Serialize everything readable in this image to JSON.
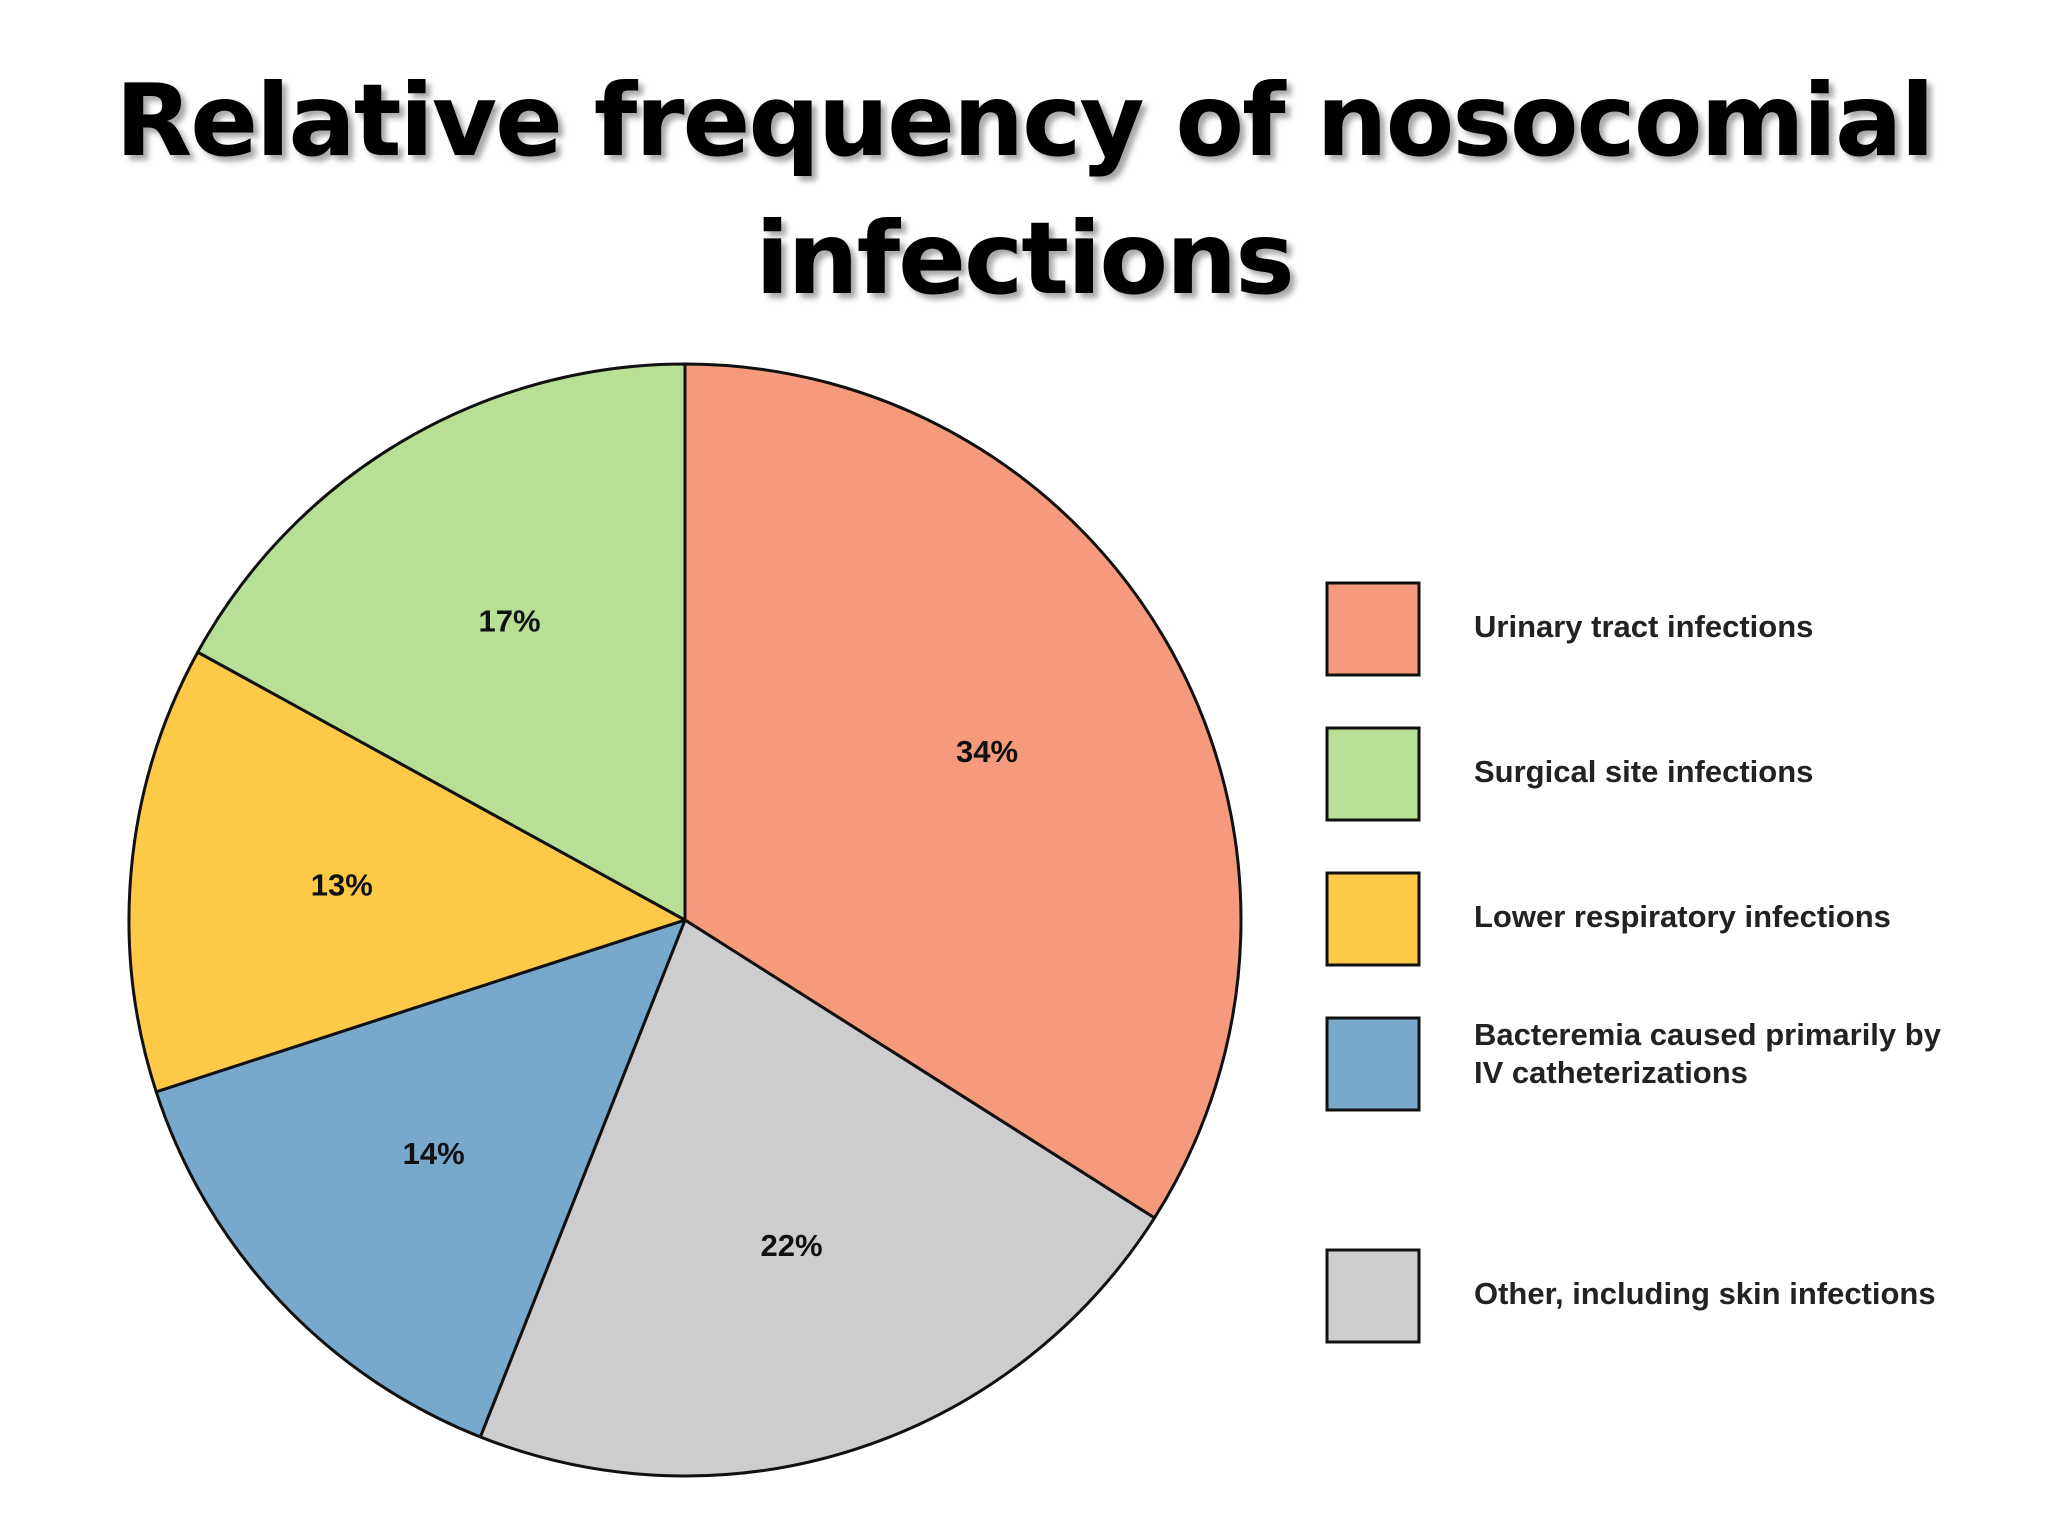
{
  "title": {
    "line1": "Relative frequency of nosocomial",
    "line2": "infections"
  },
  "chart_data": {
    "type": "pie",
    "title": "Relative frequency of nosocomial infections",
    "categories": [
      "Urinary tract infections",
      "Other, including skin infections",
      "Bacteremia caused primarily by IV catheterizations",
      "Lower respiratory infections",
      "Surgical site infections"
    ],
    "values": [
      34,
      22,
      14,
      13,
      17
    ],
    "labels": [
      "34%",
      "22%",
      "14%",
      "13%",
      "17%"
    ],
    "colors": [
      "#F59A7C",
      "#CDCDCF",
      "#78A8CC",
      "#FDC947",
      "#B7DF96"
    ],
    "start_angle_deg": 0,
    "direction": "clockwise",
    "legend": {
      "position": "right",
      "items": [
        {
          "lines": [
            "Urinary tract infections"
          ],
          "color": "#F59A7C"
        },
        {
          "lines": [
            "Surgical site infections"
          ],
          "color": "#B7DF96"
        },
        {
          "lines": [
            "Lower respiratory infections"
          ],
          "color": "#FDC947"
        },
        {
          "lines": [
            "Bacteremia caused primarily by",
            "IV catheterizations"
          ],
          "color": "#78A8CC"
        },
        {
          "lines": [
            "Other, including skin infections"
          ],
          "color": "#CDCDCF"
        }
      ]
    }
  }
}
